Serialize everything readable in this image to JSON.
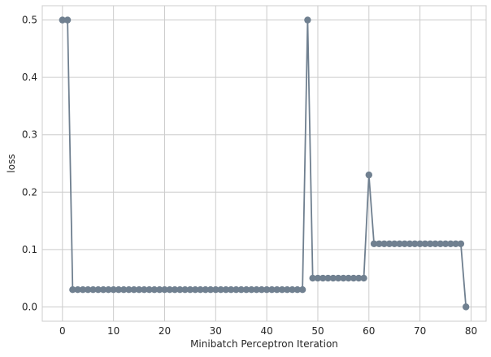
{
  "chart_data": {
    "type": "line",
    "title": "",
    "xlabel": "Minibatch Perceptron Iteration",
    "ylabel": "loss",
    "xlim": [
      -3.95,
      82.95
    ],
    "ylim": [
      -0.025,
      0.525
    ],
    "xticks": [
      0,
      10,
      20,
      30,
      40,
      50,
      60,
      70,
      80
    ],
    "yticks": [
      0.0,
      0.1,
      0.2,
      0.3,
      0.4,
      0.5
    ],
    "xtick_labels": [
      "0",
      "10",
      "20",
      "30",
      "40",
      "50",
      "60",
      "70",
      "80"
    ],
    "ytick_labels": [
      "0.0",
      "0.1",
      "0.2",
      "0.3",
      "0.4",
      "0.5"
    ],
    "grid": true,
    "legend": "none",
    "color": "#708090",
    "marker": "circle",
    "series": [
      {
        "x": [
          0,
          1,
          2,
          3,
          4,
          5,
          6,
          7,
          8,
          9,
          10,
          11,
          12,
          13,
          14,
          15,
          16,
          17,
          18,
          19,
          20,
          21,
          22,
          23,
          24,
          25,
          26,
          27,
          28,
          29,
          30,
          31,
          32,
          33,
          34,
          35,
          36,
          37,
          38,
          39,
          40,
          41,
          42,
          43,
          44,
          45,
          46,
          47,
          48,
          49,
          50,
          51,
          52,
          53,
          54,
          55,
          56,
          57,
          58,
          59,
          60,
          61,
          62,
          63,
          64,
          65,
          66,
          67,
          68,
          69,
          70,
          71,
          72,
          73,
          74,
          75,
          76,
          77,
          78,
          79
        ],
        "values": [
          0.5,
          0.5,
          0.03,
          0.03,
          0.03,
          0.03,
          0.03,
          0.03,
          0.03,
          0.03,
          0.03,
          0.03,
          0.03,
          0.03,
          0.03,
          0.03,
          0.03,
          0.03,
          0.03,
          0.03,
          0.03,
          0.03,
          0.03,
          0.03,
          0.03,
          0.03,
          0.03,
          0.03,
          0.03,
          0.03,
          0.03,
          0.03,
          0.03,
          0.03,
          0.03,
          0.03,
          0.03,
          0.03,
          0.03,
          0.03,
          0.03,
          0.03,
          0.03,
          0.03,
          0.03,
          0.03,
          0.03,
          0.03,
          0.5,
          0.05,
          0.05,
          0.05,
          0.05,
          0.05,
          0.05,
          0.05,
          0.05,
          0.05,
          0.05,
          0.05,
          0.23,
          0.11,
          0.11,
          0.11,
          0.11,
          0.11,
          0.11,
          0.11,
          0.11,
          0.11,
          0.11,
          0.11,
          0.11,
          0.11,
          0.11,
          0.11,
          0.11,
          0.11,
          0.11,
          0.0
        ]
      }
    ]
  }
}
